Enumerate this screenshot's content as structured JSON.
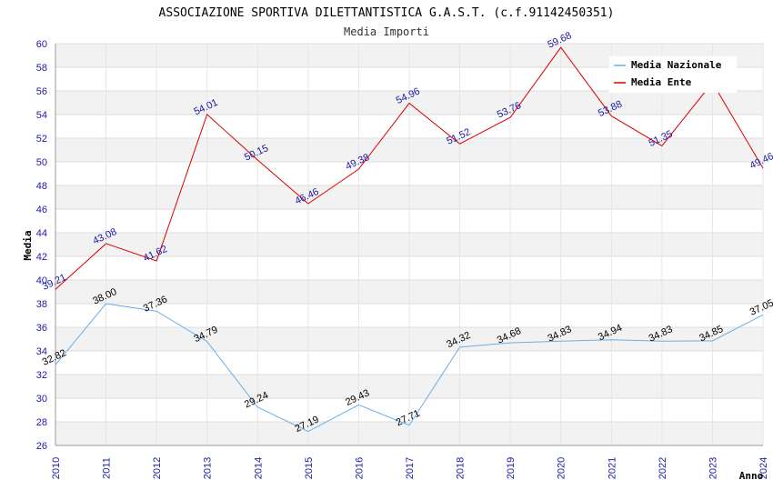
{
  "chart_data": {
    "type": "line",
    "title": "ASSOCIAZIONE SPORTIVA DILETTANTISTICA G.A.S.T. (c.f.91142450351)",
    "subtitle": "Media Importi",
    "xlabel": "Anno",
    "ylabel": "Media",
    "ylim": [
      26,
      60
    ],
    "ytick_step": 2,
    "x": [
      "2010",
      "2011",
      "2012",
      "2013",
      "2014",
      "2015",
      "2016",
      "2017",
      "2018",
      "2019",
      "2020",
      "2021",
      "2022",
      "2023",
      "2024"
    ],
    "series": [
      {
        "name": "Media Nazionale",
        "color": "#6aaee8",
        "values": [
          32.82,
          38.0,
          37.36,
          34.79,
          29.24,
          27.19,
          29.43,
          27.71,
          34.32,
          34.68,
          34.83,
          34.94,
          34.83,
          34.85,
          37.05
        ],
        "labels": [
          "32.82",
          "38.00",
          "37.36",
          "34.79",
          "29.24",
          "27.19",
          "29.43",
          "27.71",
          "34.32",
          "34.68",
          "34.83",
          "34.94",
          "34.83",
          "34.85",
          "37.05"
        ]
      },
      {
        "name": "Media Ente",
        "color": "#dd0000",
        "values": [
          39.21,
          43.08,
          41.62,
          54.01,
          50.15,
          46.46,
          49.38,
          54.96,
          51.52,
          53.76,
          59.68,
          53.88,
          51.35,
          56.7,
          49.46
        ],
        "labels": [
          "39.21",
          "43.08",
          "41.62",
          "54.01",
          "50.15",
          "46.46",
          "49.38",
          "54.96",
          "51.52",
          "53.76",
          "59.68",
          "53.88",
          "51.35",
          "",
          "49.46"
        ]
      }
    ],
    "grid": true,
    "legend_position": "top-right"
  }
}
